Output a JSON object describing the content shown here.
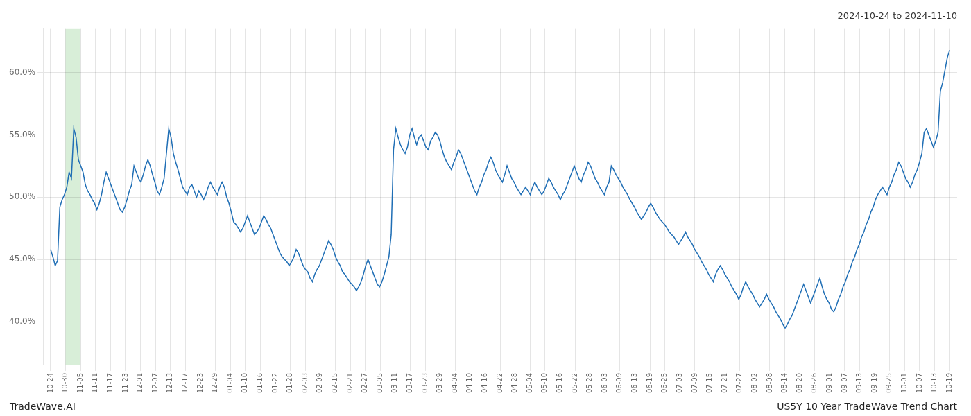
{
  "chart_data": {
    "type": "line",
    "title": "2024-10-24 to 2024-11-10",
    "annotations": [
      "TradeWave.AI",
      "US5Y 10 Year TradeWave Trend Chart"
    ],
    "color": "#1f6eb5",
    "grid": true,
    "spans": [
      {
        "x": [
          1,
          2
        ],
        "color": "#d8eed8"
      }
    ],
    "xlim": [
      -0.5,
      60.5
    ],
    "xticks": [
      {
        "value": 0,
        "label": "10-24"
      },
      {
        "value": 1,
        "label": "10-30"
      },
      {
        "value": 2,
        "label": "11-05"
      },
      {
        "value": 3,
        "label": "11-11"
      },
      {
        "value": 4,
        "label": "11-17"
      },
      {
        "value": 5,
        "label": "11-23"
      },
      {
        "value": 6,
        "label": "12-01"
      },
      {
        "value": 7,
        "label": "12-07"
      },
      {
        "value": 8,
        "label": "12-13"
      },
      {
        "value": 9,
        "label": "12-17"
      },
      {
        "value": 10,
        "label": "12-23"
      },
      {
        "value": 11,
        "label": "12-29"
      },
      {
        "value": 12,
        "label": "01-04"
      },
      {
        "value": 13,
        "label": "01-10"
      },
      {
        "value": 14,
        "label": "01-16"
      },
      {
        "value": 15,
        "label": "01-22"
      },
      {
        "value": 16,
        "label": "01-28"
      },
      {
        "value": 17,
        "label": "02-03"
      },
      {
        "value": 18,
        "label": "02-09"
      },
      {
        "value": 19,
        "label": "02-15"
      },
      {
        "value": 20,
        "label": "02-21"
      },
      {
        "value": 21,
        "label": "02-27"
      },
      {
        "value": 22,
        "label": "03-05"
      },
      {
        "value": 23,
        "label": "03-11"
      },
      {
        "value": 24,
        "label": "03-17"
      },
      {
        "value": 25,
        "label": "03-23"
      },
      {
        "value": 26,
        "label": "03-29"
      },
      {
        "value": 27,
        "label": "04-04"
      },
      {
        "value": 28,
        "label": "04-10"
      },
      {
        "value": 29,
        "label": "04-16"
      },
      {
        "value": 30,
        "label": "04-22"
      },
      {
        "value": 31,
        "label": "04-28"
      },
      {
        "value": 32,
        "label": "05-04"
      },
      {
        "value": 33,
        "label": "05-10"
      },
      {
        "value": 34,
        "label": "05-16"
      },
      {
        "value": 35,
        "label": "05-22"
      },
      {
        "value": 36,
        "label": "05-28"
      },
      {
        "value": 37,
        "label": "06-03"
      },
      {
        "value": 38,
        "label": "06-09"
      },
      {
        "value": 39,
        "label": "06-13"
      },
      {
        "value": 40,
        "label": "06-19"
      },
      {
        "value": 41,
        "label": "06-25"
      },
      {
        "value": 42,
        "label": "07-03"
      },
      {
        "value": 43,
        "label": "07-09"
      },
      {
        "value": 44,
        "label": "07-15"
      },
      {
        "value": 45,
        "label": "07-21"
      },
      {
        "value": 46,
        "label": "07-27"
      },
      {
        "value": 47,
        "label": "08-02"
      },
      {
        "value": 48,
        "label": "08-08"
      },
      {
        "value": 49,
        "label": "08-14"
      },
      {
        "value": 50,
        "label": "08-20"
      },
      {
        "value": 51,
        "label": "08-26"
      },
      {
        "value": 52,
        "label": "09-01"
      },
      {
        "value": 53,
        "label": "09-07"
      },
      {
        "value": 54,
        "label": "09-13"
      },
      {
        "value": 55,
        "label": "09-19"
      },
      {
        "value": 56,
        "label": "09-25"
      },
      {
        "value": 57,
        "label": "10-01"
      },
      {
        "value": 58,
        "label": "10-07"
      },
      {
        "value": 59,
        "label": "10-13"
      },
      {
        "value": 60,
        "label": "10-19"
      }
    ],
    "ylim": [
      36.5,
      63.5
    ],
    "yticks": [
      {
        "value": 40.0,
        "label": "40.0%"
      },
      {
        "value": 45.0,
        "label": "45.0%"
      },
      {
        "value": 50.0,
        "label": "50.0%"
      },
      {
        "value": 55.0,
        "label": "55.0%"
      },
      {
        "value": 60.0,
        "label": "60.0%"
      }
    ],
    "values": [
      45.8,
      45.2,
      44.5,
      44.9,
      49.2,
      49.8,
      50.2,
      50.8,
      52.0,
      51.5,
      55.5,
      54.8,
      53.0,
      52.5,
      52.0,
      51.0,
      50.5,
      50.2,
      49.8,
      49.5,
      49.0,
      49.5,
      50.2,
      51.2,
      52.0,
      51.5,
      51.0,
      50.5,
      50.0,
      49.5,
      49.0,
      48.8,
      49.2,
      49.8,
      50.5,
      51.0,
      52.5,
      52.0,
      51.5,
      51.2,
      51.8,
      52.5,
      53.0,
      52.5,
      51.8,
      51.2,
      50.5,
      50.2,
      50.8,
      51.5,
      53.5,
      55.5,
      54.8,
      53.5,
      52.8,
      52.2,
      51.5,
      50.8,
      50.5,
      50.2,
      50.8,
      51.0,
      50.5,
      50.0,
      50.5,
      50.2,
      49.8,
      50.2,
      50.8,
      51.2,
      50.8,
      50.5,
      50.2,
      50.8,
      51.2,
      50.8,
      50.0,
      49.5,
      48.8,
      48.0,
      47.8,
      47.5,
      47.2,
      47.5,
      48.0,
      48.5,
      48.0,
      47.5,
      47.0,
      47.2,
      47.5,
      48.0,
      48.5,
      48.2,
      47.8,
      47.5,
      47.0,
      46.5,
      46.0,
      45.5,
      45.2,
      45.0,
      44.8,
      44.5,
      44.8,
      45.2,
      45.8,
      45.5,
      45.0,
      44.5,
      44.2,
      44.0,
      43.5,
      43.2,
      43.8,
      44.2,
      44.5,
      45.0,
      45.5,
      46.0,
      46.5,
      46.2,
      45.8,
      45.2,
      44.8,
      44.5,
      44.0,
      43.8,
      43.5,
      43.2,
      43.0,
      42.8,
      42.5,
      42.8,
      43.2,
      43.8,
      44.5,
      45.0,
      44.5,
      44.0,
      43.5,
      43.0,
      42.8,
      43.2,
      43.8,
      44.5,
      45.2,
      47.0,
      53.8,
      55.5,
      54.8,
      54.2,
      53.8,
      53.5,
      54.0,
      55.0,
      55.5,
      54.8,
      54.2,
      54.8,
      55.0,
      54.5,
      54.0,
      53.8,
      54.5,
      54.8,
      55.2,
      55.0,
      54.5,
      53.8,
      53.2,
      52.8,
      52.5,
      52.2,
      52.8,
      53.2,
      53.8,
      53.5,
      53.0,
      52.5,
      52.0,
      51.5,
      51.0,
      50.5,
      50.2,
      50.8,
      51.2,
      51.8,
      52.2,
      52.8,
      53.2,
      52.8,
      52.2,
      51.8,
      51.5,
      51.2,
      51.8,
      52.5,
      52.0,
      51.5,
      51.2,
      50.8,
      50.5,
      50.2,
      50.5,
      50.8,
      50.5,
      50.2,
      50.8,
      51.2,
      50.8,
      50.5,
      50.2,
      50.5,
      51.0,
      51.5,
      51.2,
      50.8,
      50.5,
      50.2,
      49.8,
      50.2,
      50.5,
      51.0,
      51.5,
      52.0,
      52.5,
      52.0,
      51.5,
      51.2,
      51.8,
      52.2,
      52.8,
      52.5,
      52.0,
      51.5,
      51.2,
      50.8,
      50.5,
      50.2,
      50.8,
      51.2,
      52.5,
      52.2,
      51.8,
      51.5,
      51.2,
      50.8,
      50.5,
      50.2,
      49.8,
      49.5,
      49.2,
      48.8,
      48.5,
      48.2,
      48.5,
      48.8,
      49.2,
      49.5,
      49.2,
      48.8,
      48.5,
      48.2,
      48.0,
      47.8,
      47.5,
      47.2,
      47.0,
      46.8,
      46.5,
      46.2,
      46.5,
      46.8,
      47.2,
      46.8,
      46.5,
      46.2,
      45.8,
      45.5,
      45.2,
      44.8,
      44.5,
      44.2,
      43.8,
      43.5,
      43.2,
      43.8,
      44.2,
      44.5,
      44.2,
      43.8,
      43.5,
      43.2,
      42.8,
      42.5,
      42.2,
      41.8,
      42.2,
      42.8,
      43.2,
      42.8,
      42.5,
      42.2,
      41.8,
      41.5,
      41.2,
      41.5,
      41.8,
      42.2,
      41.8,
      41.5,
      41.2,
      40.8,
      40.5,
      40.2,
      39.8,
      39.5,
      39.8,
      40.2,
      40.5,
      41.0,
      41.5,
      42.0,
      42.5,
      43.0,
      42.5,
      42.0,
      41.5,
      42.0,
      42.5,
      43.0,
      43.5,
      42.8,
      42.2,
      41.8,
      41.5,
      41.0,
      40.8,
      41.2,
      41.8,
      42.2,
      42.8,
      43.2,
      43.8,
      44.2,
      44.8,
      45.2,
      45.8,
      46.2,
      46.8,
      47.2,
      47.8,
      48.2,
      48.8,
      49.2,
      49.8,
      50.2,
      50.5,
      50.8,
      50.5,
      50.2,
      50.8,
      51.2,
      51.8,
      52.2,
      52.8,
      52.5,
      52.0,
      51.5,
      51.2,
      50.8,
      51.2,
      51.8,
      52.2,
      52.8,
      53.5,
      55.2,
      55.5,
      55.0,
      54.5,
      54.0,
      54.5,
      55.2,
      58.5,
      59.2,
      60.2,
      61.2,
      61.8
    ]
  }
}
